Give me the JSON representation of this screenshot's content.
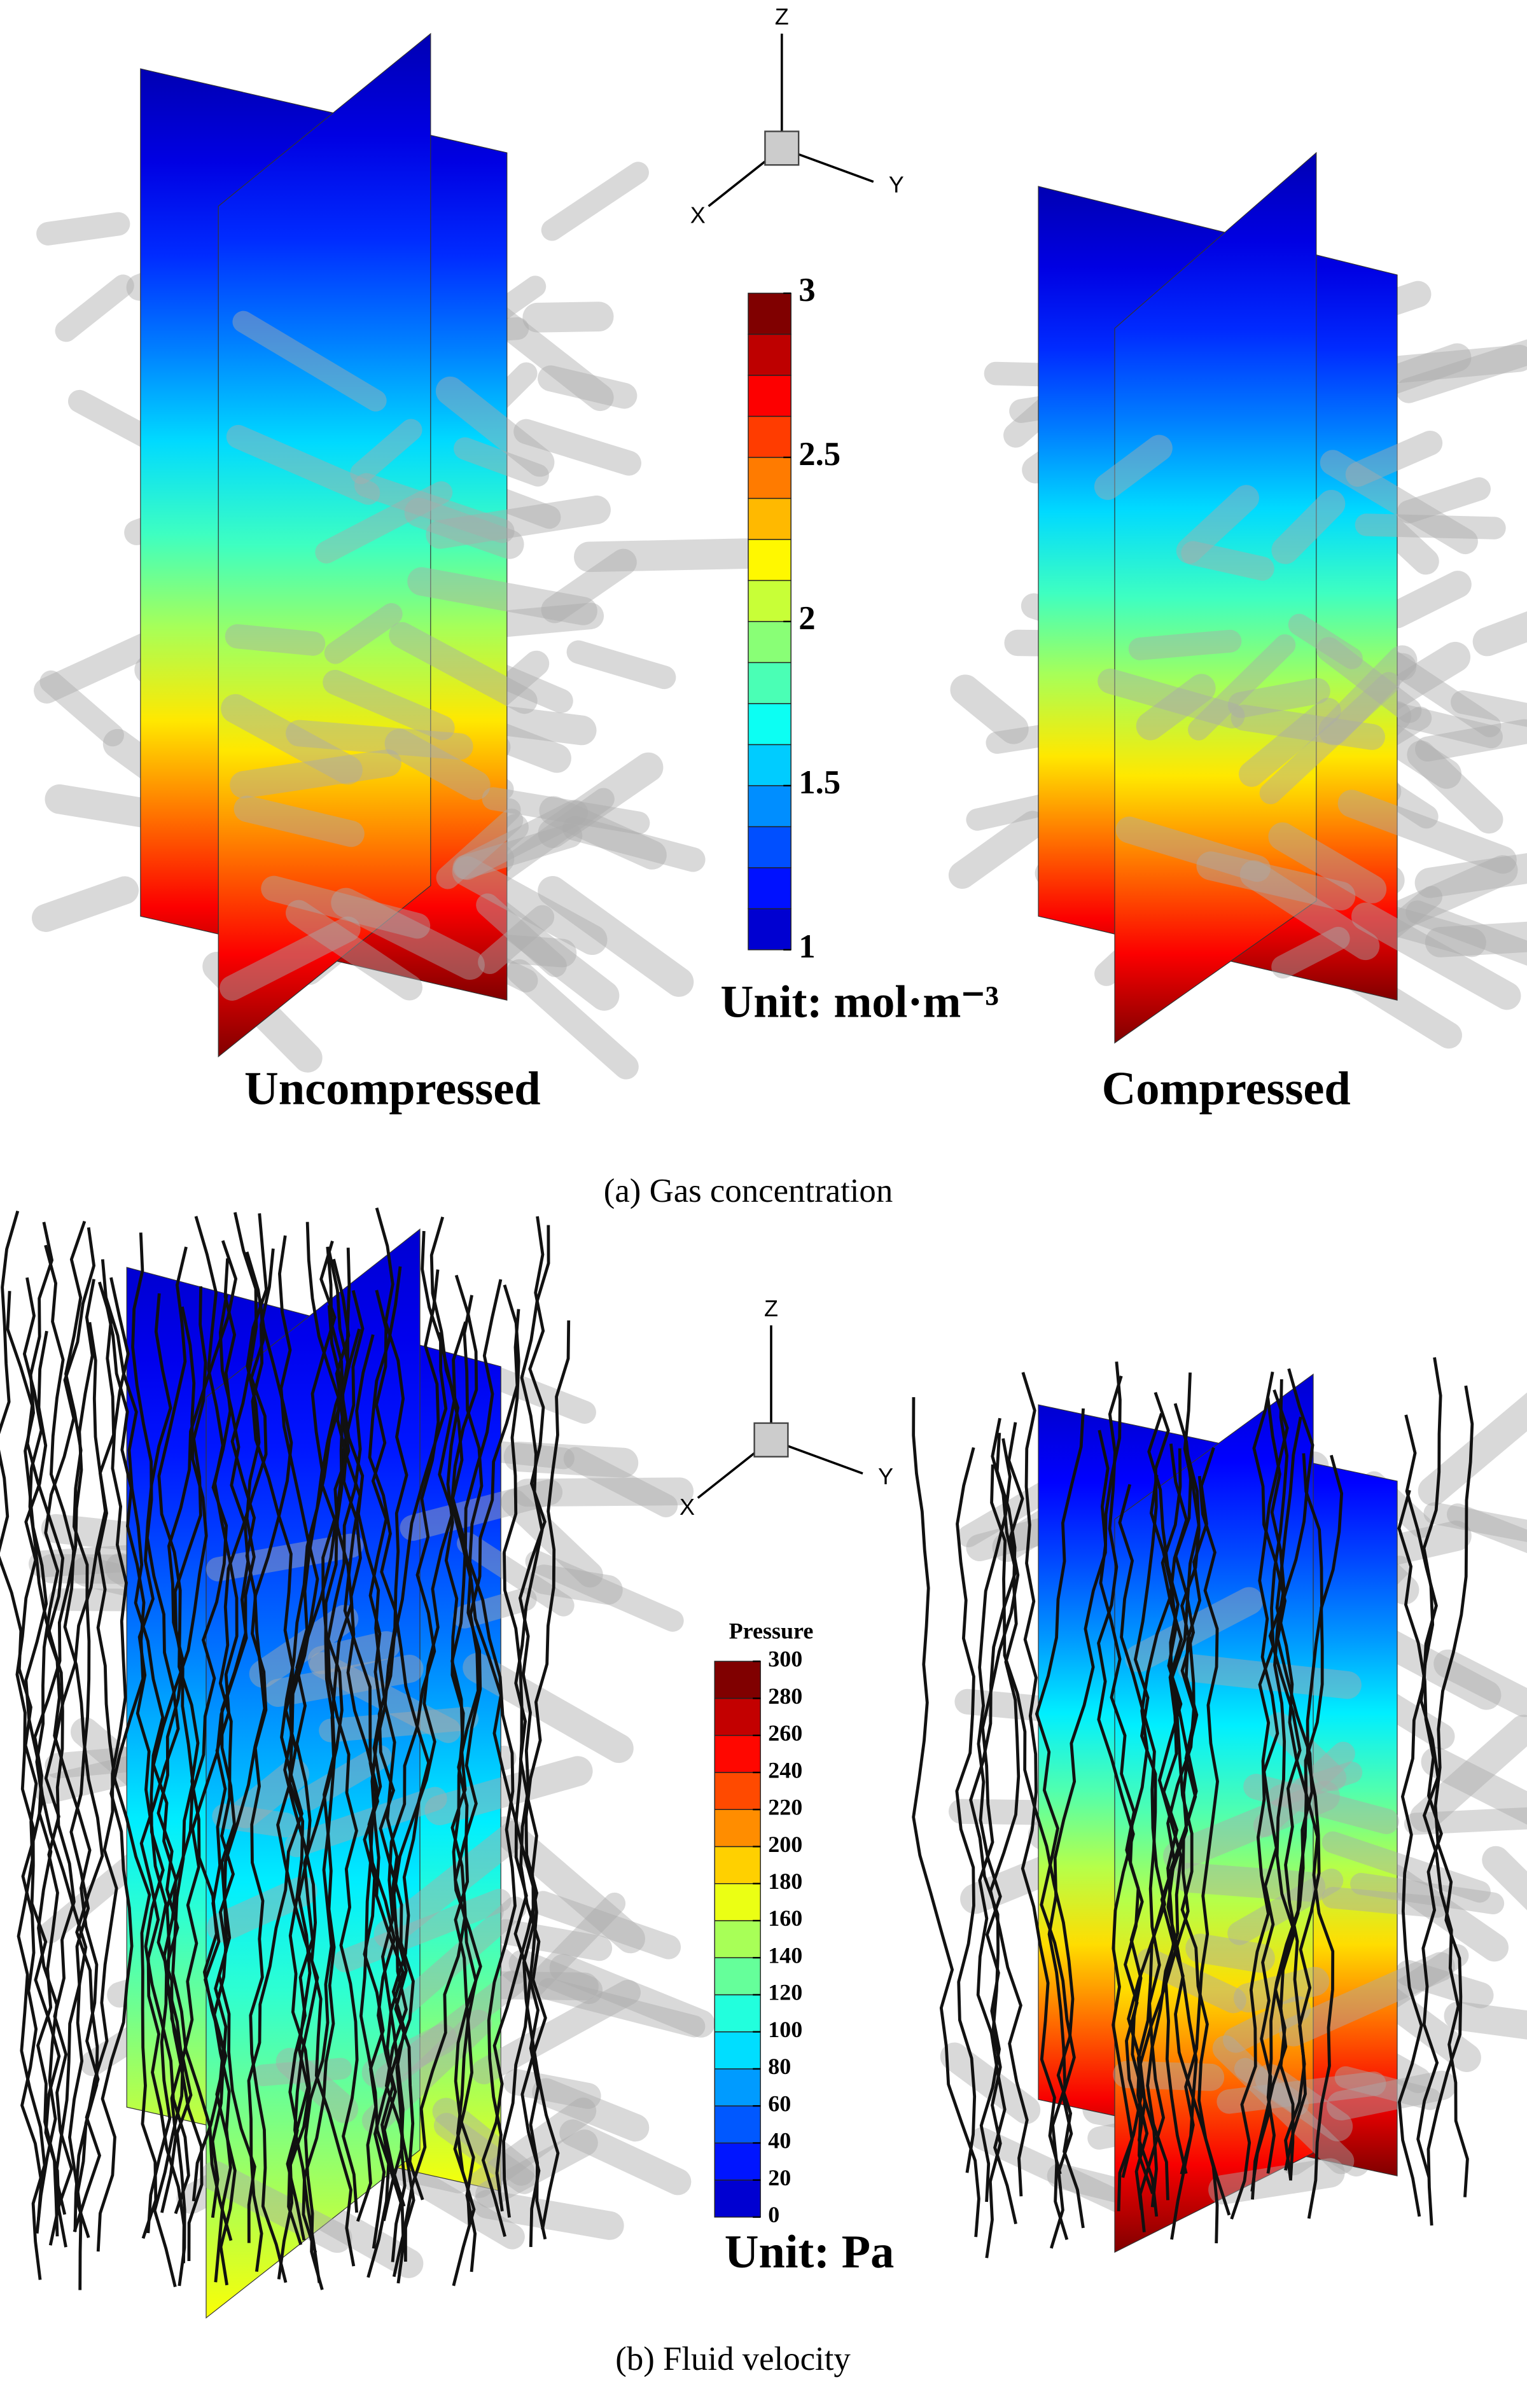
{
  "panels": [
    {
      "axes": {
        "z": "Z",
        "x": "X",
        "y": "Y"
      },
      "colorbar": {
        "ticks": [
          1,
          1.5,
          2,
          2.5,
          3
        ],
        "range": [
          1,
          3
        ],
        "unit": "Unit: mol·m⁻³"
      },
      "left_label": "Uncompressed",
      "right_label": "Compressed",
      "caption_prefix": "(a)",
      "caption": "Gas concentration"
    },
    {
      "axes": {
        "z": "Z",
        "x": "X",
        "y": "Y"
      },
      "colorbar": {
        "title": "Pressure",
        "ticks": [
          0,
          20,
          40,
          60,
          80,
          100,
          120,
          140,
          160,
          180,
          200,
          220,
          240,
          260,
          280,
          300
        ],
        "range": [
          0,
          300
        ],
        "unit": "Unit: Pa"
      },
      "caption_prefix": "(b)",
      "caption": "Fluid velocity"
    }
  ]
}
